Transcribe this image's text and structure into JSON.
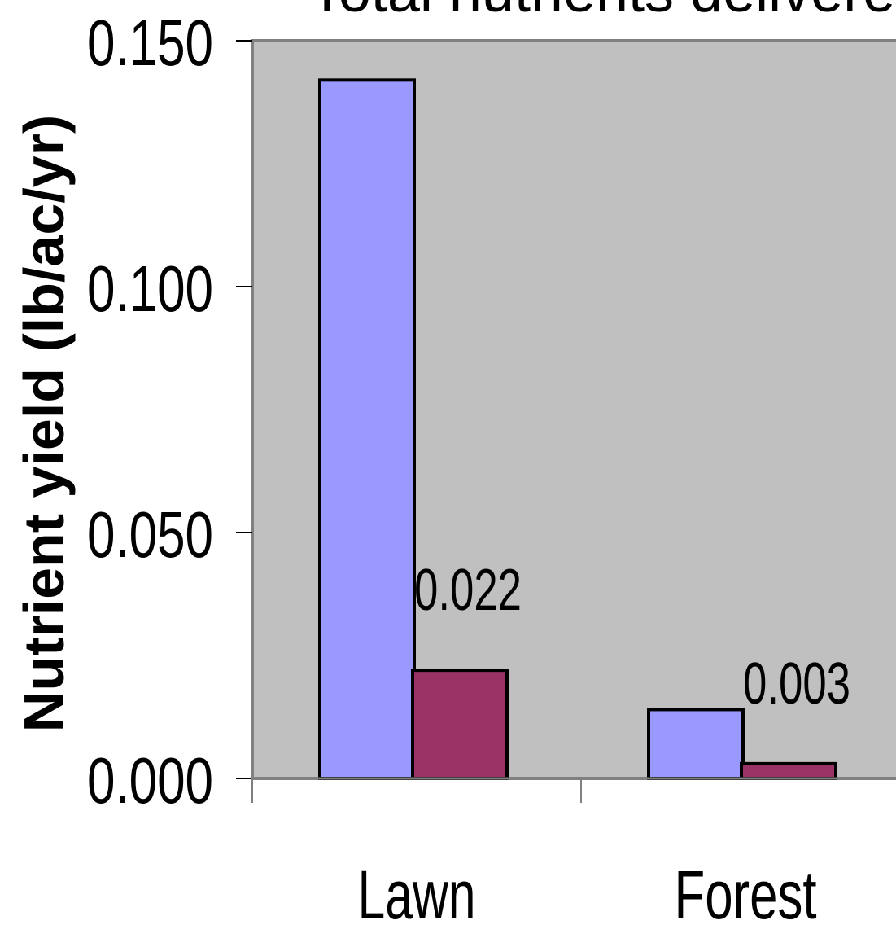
{
  "chart_data": {
    "type": "bar",
    "title": "Total nutrients delivered",
    "ylabel": "Nutrient yield (lb/ac/yr)",
    "xlabel": "",
    "categories": [
      "Lawn",
      "Forest"
    ],
    "series": [
      {
        "values": [
          0.142,
          0.014
        ],
        "color": "#9999FF",
        "data_labels": [
          null,
          null
        ]
      },
      {
        "values": [
          0.022,
          0.003
        ],
        "color": "#993366",
        "data_labels": [
          "0.022",
          "0.003"
        ]
      }
    ],
    "ylim": [
      0,
      0.15
    ],
    "yticks": [
      "0.150",
      "0.100",
      "0.050",
      "0.000"
    ],
    "ytick_values": [
      0.15,
      0.1,
      0.05,
      0
    ],
    "grid": false,
    "plot_background": "#C0C0C0"
  }
}
